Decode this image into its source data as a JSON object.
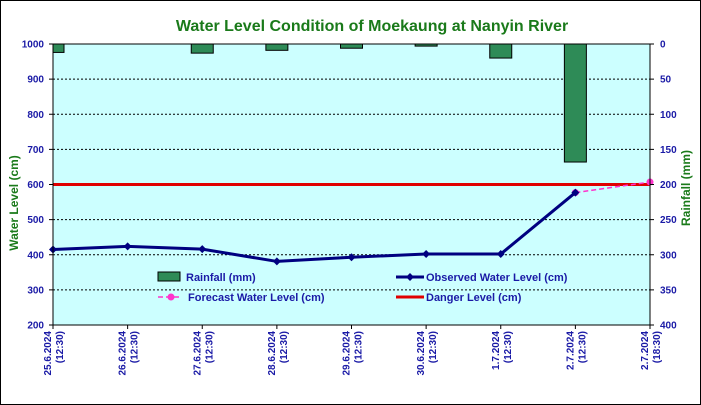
{
  "chart_data": {
    "type": "bar+line",
    "title": "Water Level Condition of Moekaung at Nanyin River",
    "ylabel": "Water Level (cm)",
    "y2label": "Rainfall (mm)",
    "ylim": [
      200,
      1000
    ],
    "y2lim": [
      400,
      0
    ],
    "yticks": [
      "200",
      "300",
      "400",
      "500",
      "600",
      "700",
      "800",
      "900",
      "1000"
    ],
    "y2ticks": [
      "0",
      "50",
      "100",
      "150",
      "200",
      "250",
      "300",
      "350",
      "400"
    ],
    "categories": [
      [
        "25.6.2024",
        "(12:30)"
      ],
      [
        "26.6.2024",
        "(12:30)"
      ],
      [
        "27.6.2024",
        "(12:30)"
      ],
      [
        "28.6.2024",
        "(12:30)"
      ],
      [
        "29.6.2024",
        "(12:30)"
      ],
      [
        "30.6.2024",
        "(12:30)"
      ],
      [
        "1.7.2024",
        "(12:30)"
      ],
      [
        "2.7.2024",
        "(12:30)"
      ],
      [
        "2.7.2024",
        "(18:30)"
      ]
    ],
    "series": [
      {
        "name": "Rainfall (mm)",
        "kind": "bar",
        "color": "#2e8b57",
        "values": [
          12,
          null,
          13,
          9,
          6,
          3,
          20,
          168,
          null
        ]
      },
      {
        "name": "Observed Water Level (cm)",
        "kind": "line",
        "color": "#000080",
        "values": [
          415,
          424,
          416,
          381,
          393,
          402,
          402,
          577,
          null
        ]
      },
      {
        "name": "Forecast Water Level (cm)",
        "kind": "line-dashed",
        "color": "#ff33cc",
        "values": [
          null,
          null,
          null,
          null,
          null,
          null,
          null,
          577,
          607
        ]
      },
      {
        "name": "Danger Level (cm)",
        "kind": "hline",
        "color": "#e00000",
        "value": 600
      }
    ],
    "grid": true,
    "legend_placement": "inside-bottom"
  },
  "colors": {
    "plot_background": "#ccffff",
    "title": "#1a7a1a",
    "ticks": "#1a1aa6"
  }
}
